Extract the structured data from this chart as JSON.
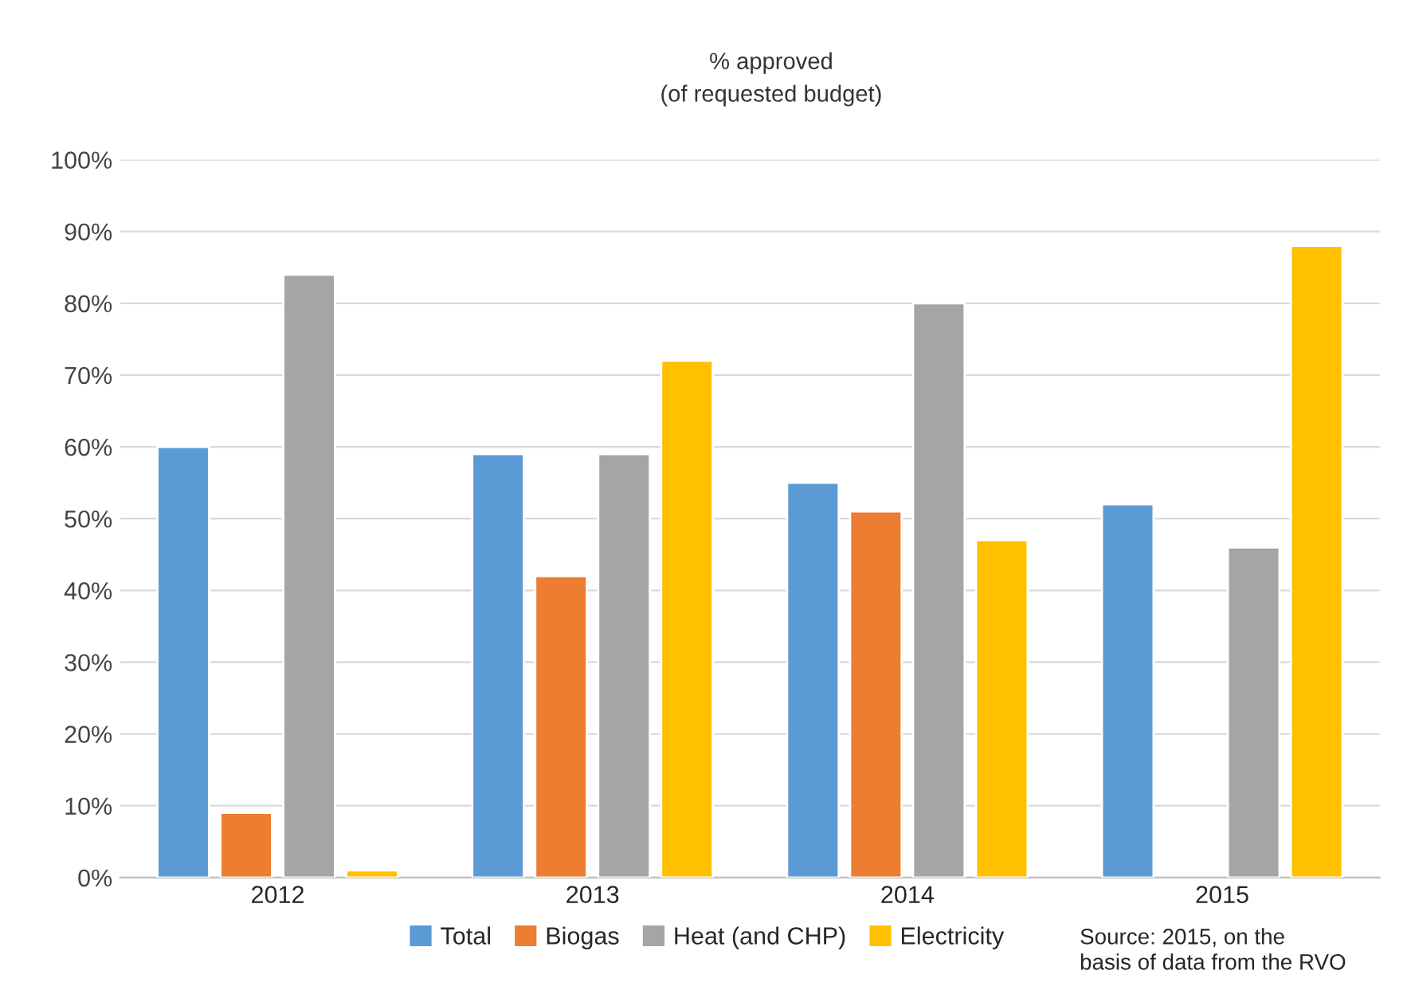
{
  "chart_data": {
    "type": "bar",
    "title": "% approved",
    "subtitle": "(of requested budget)",
    "categories": [
      "2012",
      "2013",
      "2014",
      "2015"
    ],
    "series": [
      {
        "name": "Total",
        "color": "#5b9bd5",
        "values": [
          60,
          59,
          55,
          52
        ]
      },
      {
        "name": "Biogas",
        "color": "#ed7d31",
        "values": [
          9,
          42,
          51,
          null
        ]
      },
      {
        "name": "Heat (and CHP)",
        "color": "#a5a5a5",
        "values": [
          84,
          59,
          80,
          46
        ]
      },
      {
        "name": "Electricity",
        "color": "#ffc000",
        "values": [
          1,
          72,
          47,
          88
        ]
      }
    ],
    "ylim": [
      0,
      100
    ],
    "yticks": [
      {
        "value": 0,
        "label": "0%"
      },
      {
        "value": 10,
        "label": "10%"
      },
      {
        "value": 20,
        "label": "20%"
      },
      {
        "value": 30,
        "label": "30%"
      },
      {
        "value": 40,
        "label": "40%"
      },
      {
        "value": 50,
        "label": "50%"
      },
      {
        "value": 60,
        "label": "60%"
      },
      {
        "value": 70,
        "label": "70%"
      },
      {
        "value": 80,
        "label": "80%"
      },
      {
        "value": 90,
        "label": "90%"
      },
      {
        "value": 100,
        "label": "100%"
      }
    ],
    "grid": "y",
    "legend": "bottom",
    "annotations": [
      "Source: 2015, on the\nbasis of data from the RVO"
    ]
  }
}
